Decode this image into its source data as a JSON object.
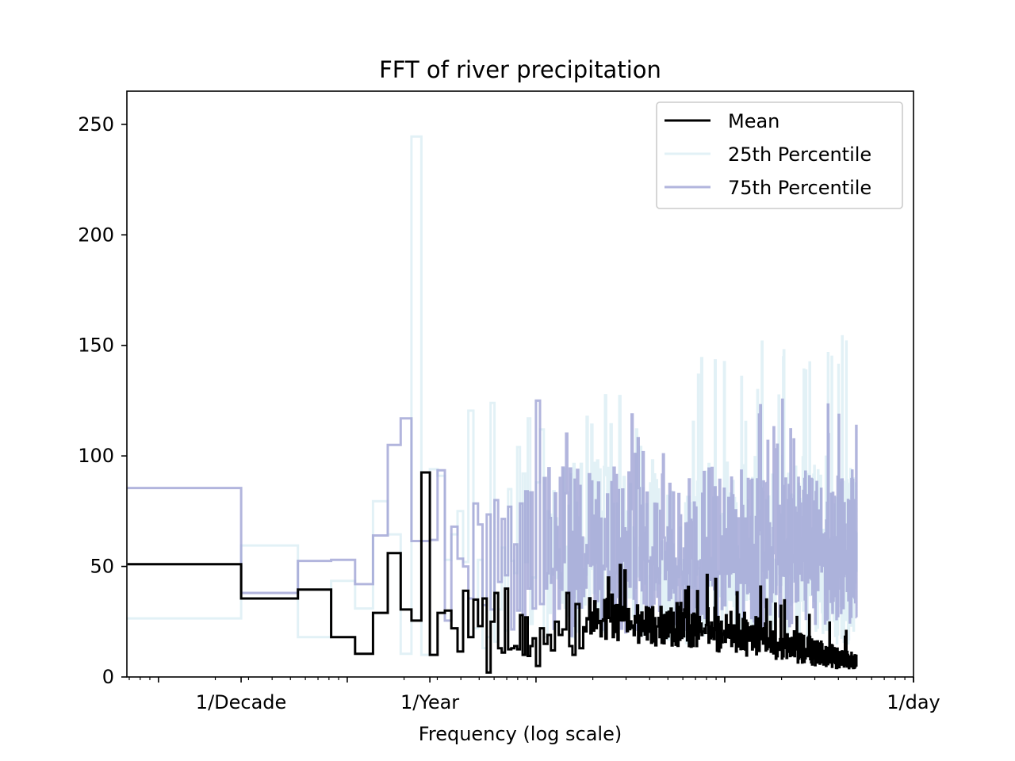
{
  "chart_data": {
    "type": "line",
    "style": "step",
    "title": "FFT of river precipitation",
    "xlabel": "Frequency (log scale)",
    "ylabel": "",
    "x_scale": "log",
    "x_unit": "cycles per day",
    "xlim": [
      6.8e-05,
      1.0
    ],
    "ylim": [
      0,
      265
    ],
    "x_ticks": [
      {
        "value": 0.000274,
        "label": "1/Decade"
      },
      {
        "value": 0.00274,
        "label": "1/Year"
      },
      {
        "value": 1.0,
        "label": "1/day"
      }
    ],
    "y_ticks": [
      0,
      50,
      100,
      150,
      200,
      250
    ],
    "grid": false,
    "legend_position": "top-right",
    "series": [
      {
        "name": "Mean",
        "color": "#000000",
        "opacity": 1.0,
        "steps": [
          [
            6.85e-05,
            51
          ],
          [
            0.000274,
            35.5
          ],
          [
            0.000548,
            39.5
          ],
          [
            0.000822,
            18
          ],
          [
            0.0011,
            10.5
          ],
          [
            0.00137,
            29
          ],
          [
            0.00164,
            56
          ],
          [
            0.00192,
            30.5
          ],
          [
            0.00219,
            25.5
          ],
          [
            0.00247,
            92.5
          ],
          [
            0.00274,
            10
          ],
          [
            0.00301,
            29
          ],
          [
            0.00329,
            30
          ],
          [
            0.00356,
            22
          ],
          [
            0.00384,
            11.5
          ],
          [
            0.00411,
            39
          ],
          [
            0.00438,
            18
          ],
          [
            0.00466,
            35
          ],
          [
            0.00493,
            23
          ],
          [
            0.00521,
            35.5
          ],
          [
            0.00548,
            2
          ],
          [
            0.00575,
            25
          ],
          [
            0.00603,
            38
          ],
          [
            0.0063,
            13
          ],
          [
            0.00658,
            11
          ],
          [
            0.00685,
            40
          ],
          [
            0.00712,
            12.5
          ],
          [
            0.0074,
            13
          ],
          [
            0.00767,
            14
          ],
          [
            0.00795,
            12.5
          ],
          [
            0.00822,
            28
          ],
          [
            0.0085,
            10
          ],
          [
            0.00877,
            27
          ],
          [
            0.00904,
            9.5
          ],
          [
            0.00932,
            14
          ],
          [
            0.0096,
            17.5
          ],
          [
            0.01,
            5
          ],
          [
            0.0105,
            22
          ],
          [
            0.011,
            15
          ],
          [
            0.0115,
            19
          ],
          [
            0.012,
            12
          ],
          [
            0.0126,
            25
          ],
          [
            0.0132,
            19
          ],
          [
            0.0138,
            21.5
          ],
          [
            0.0145,
            38
          ],
          [
            0.015,
            14
          ],
          [
            0.0156,
            10
          ],
          [
            0.0162,
            33
          ],
          [
            0.017,
            13
          ],
          [
            0.0178,
            22.5
          ]
        ],
        "summary_above_x_0_018": "dense noisy band; values mostly 5-45 with spikes near 50, declining toward ~2-10 beyond x=0.3; ends at x=0.5"
      },
      {
        "name": "25th Percentile",
        "color": "#add8e6",
        "opacity": 0.35,
        "steps": [
          [
            6.85e-05,
            26.5
          ],
          [
            0.000274,
            59.5
          ],
          [
            0.000548,
            18
          ],
          [
            0.000822,
            43.5
          ],
          [
            0.0011,
            31
          ],
          [
            0.00137,
            79.5
          ],
          [
            0.00164,
            64.5
          ],
          [
            0.00192,
            10.5
          ],
          [
            0.00219,
            244.5
          ],
          [
            0.00247,
            10
          ],
          [
            0.00274,
            94
          ],
          [
            0.00301,
            91
          ],
          [
            0.00329,
            53
          ],
          [
            0.00356,
            64.5
          ],
          [
            0.00384,
            75
          ],
          [
            0.00411,
            52
          ],
          [
            0.00438,
            120.5
          ],
          [
            0.00466,
            22
          ],
          [
            0.00493,
            53
          ],
          [
            0.00521,
            13
          ],
          [
            0.00548,
            18
          ],
          [
            0.00575,
            124
          ],
          [
            0.00603,
            16
          ],
          [
            0.0063,
            30.5
          ],
          [
            0.00658,
            58.5
          ],
          [
            0.00685,
            21
          ],
          [
            0.00712,
            85
          ],
          [
            0.0074,
            52.5
          ],
          [
            0.00767,
            47
          ],
          [
            0.00795,
            104
          ],
          [
            0.00822,
            30
          ],
          [
            0.0085,
            92
          ],
          [
            0.00877,
            52
          ],
          [
            0.00904,
            117
          ],
          [
            0.00932,
            24
          ],
          [
            0.0096,
            45
          ],
          [
            0.01,
            88
          ],
          [
            0.0105,
            112
          ],
          [
            0.011,
            18
          ],
          [
            0.0115,
            75
          ]
        ],
        "summary_above_x_0_011": "dense noisy band mostly 20-110 with peaks near 120-165 around x=0.1-0.2; ends at x=0.5"
      },
      {
        "name": "75th Percentile",
        "color": "#9fa3d5",
        "opacity": 0.8,
        "steps": [
          [
            6.85e-05,
            85.5
          ],
          [
            0.000274,
            38
          ],
          [
            0.000548,
            52.5
          ],
          [
            0.000822,
            53
          ],
          [
            0.0011,
            42
          ],
          [
            0.00137,
            64
          ],
          [
            0.00164,
            105
          ],
          [
            0.00192,
            117
          ],
          [
            0.00219,
            61.5
          ],
          [
            0.00247,
            61.5
          ],
          [
            0.00274,
            62
          ],
          [
            0.00301,
            93.5
          ],
          [
            0.00329,
            25.5
          ],
          [
            0.00356,
            68
          ],
          [
            0.00384,
            53.5
          ],
          [
            0.00411,
            50
          ],
          [
            0.00438,
            35.5
          ],
          [
            0.00466,
            78.5
          ],
          [
            0.00493,
            69
          ],
          [
            0.00521,
            32.5
          ],
          [
            0.00548,
            73.5
          ],
          [
            0.00575,
            30.5
          ],
          [
            0.00603,
            80
          ],
          [
            0.0063,
            43
          ],
          [
            0.00658,
            71.5
          ],
          [
            0.00685,
            46
          ],
          [
            0.00712,
            77
          ],
          [
            0.0074,
            21.5
          ],
          [
            0.00767,
            60
          ],
          [
            0.00795,
            30
          ],
          [
            0.00822,
            78.5
          ],
          [
            0.0085,
            28
          ],
          [
            0.00877,
            84
          ],
          [
            0.00904,
            40
          ],
          [
            0.00932,
            83.5
          ],
          [
            0.0096,
            31
          ],
          [
            0.01,
            125
          ],
          [
            0.0105,
            33
          ],
          [
            0.011,
            90
          ]
        ],
        "summary_above_x_0_011": "dense noisy band mostly 20-110 with peaks near 120-132; lower bound rises to ~18-25 toward x=0.5"
      }
    ]
  }
}
